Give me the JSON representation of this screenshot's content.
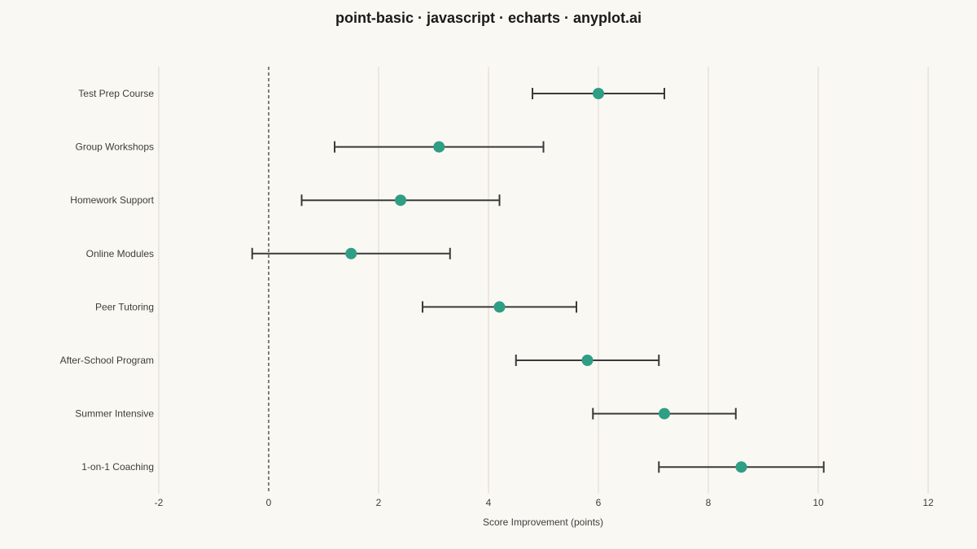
{
  "chart_data": {
    "type": "scatter",
    "title": "point-basic · javascript · echarts · anyplot.ai",
    "xlabel": "Score Improvement (points)",
    "ylabel": "",
    "xlim": [
      -2,
      12
    ],
    "xticks": [
      "-2",
      "0",
      "2",
      "4",
      "6",
      "8",
      "10",
      "12"
    ],
    "grid": "vertical",
    "reference_line_x": 0,
    "point_color": "#2E9E84",
    "categories": [
      "Test Prep Course",
      "Group Workshops",
      "Homework Support",
      "Online Modules",
      "Peer Tutoring",
      "After-School Program",
      "Summer Intensive",
      "1-on-1 Coaching"
    ],
    "values": [
      6.0,
      3.1,
      2.4,
      1.5,
      4.2,
      5.8,
      7.2,
      8.6
    ],
    "lower": [
      4.8,
      1.2,
      0.6,
      -0.3,
      2.8,
      4.5,
      5.9,
      7.1
    ],
    "upper": [
      7.2,
      5.0,
      4.2,
      3.3,
      5.6,
      7.1,
      8.5,
      10.1
    ]
  }
}
